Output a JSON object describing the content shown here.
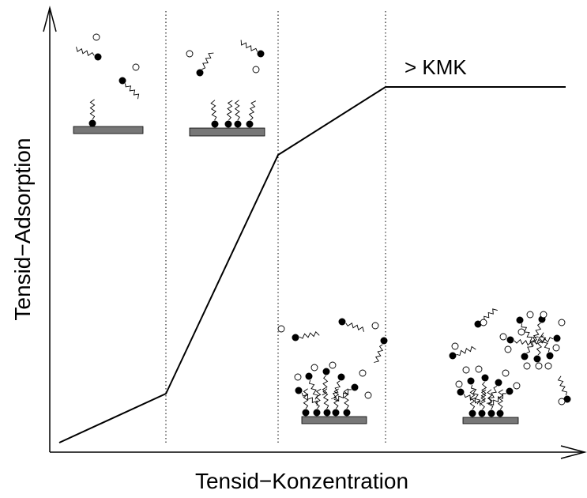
{
  "axes": {
    "y_label": "Tensid−Adsorption",
    "x_label": "Tensid−Konzentration"
  },
  "annotation": "> KMK"
}
